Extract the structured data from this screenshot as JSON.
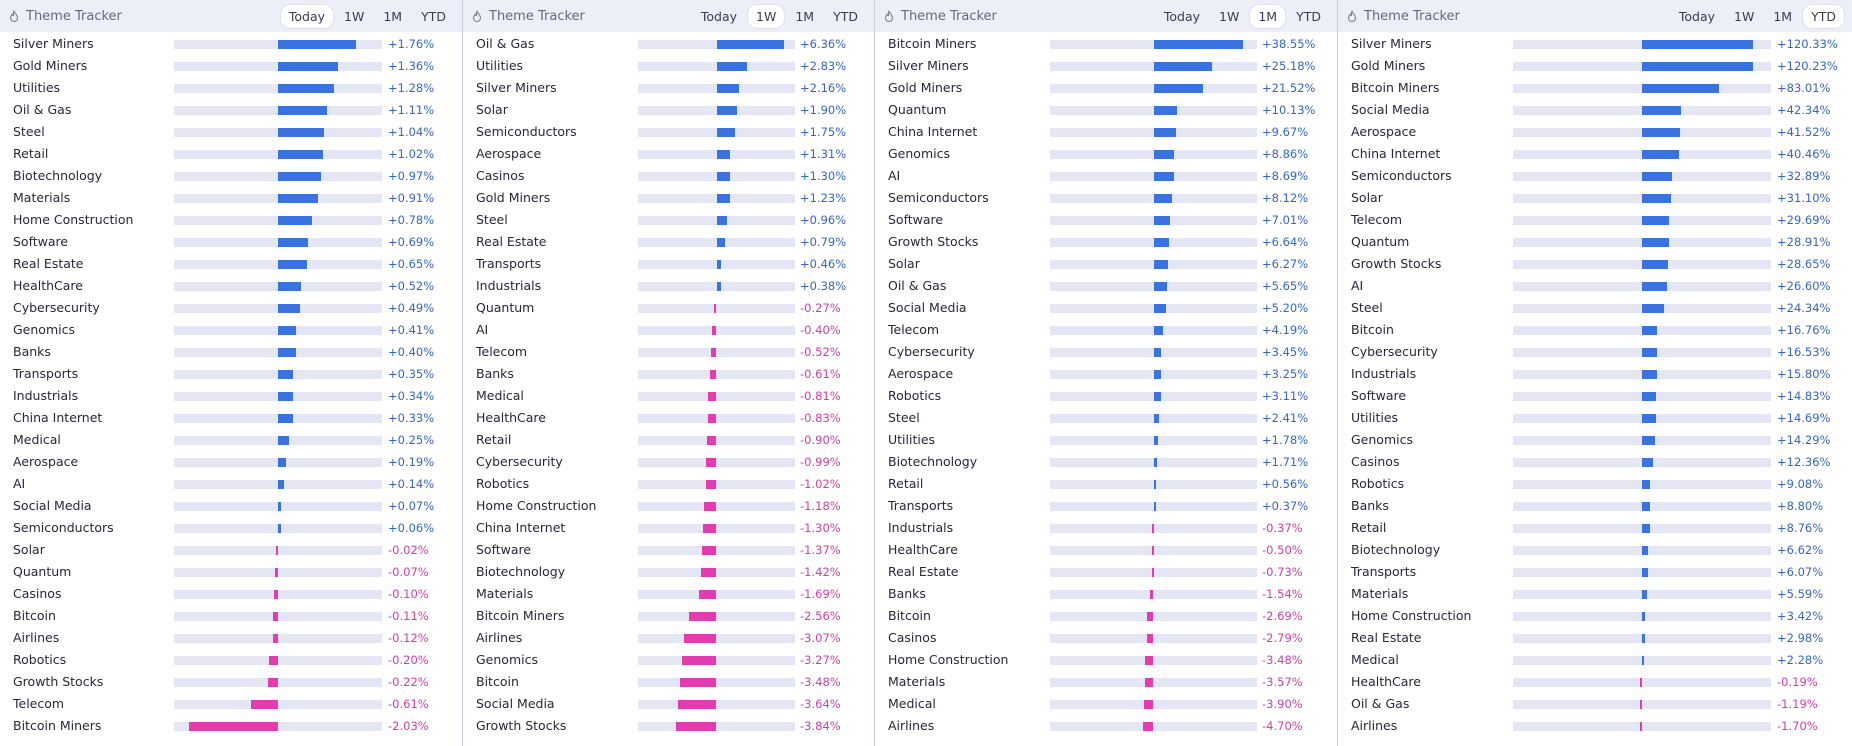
{
  "app": {
    "title": "Theme Tracker",
    "tabs": [
      "Today",
      "1W",
      "1M",
      "YTD"
    ],
    "colors": {
      "positive": "#3a72e0",
      "negative": "#e23caf",
      "track": "#e4e6f3",
      "header_bg": "#eceef8"
    }
  },
  "panels": [
    {
      "title": "Theme Tracker",
      "active_tab": "Today",
      "tabs": [
        "Today",
        "1W",
        "1M",
        "YTD"
      ],
      "rows": [
        {
          "name": "Silver Miners",
          "label": "+1.76%",
          "value": 1.76
        },
        {
          "name": "Gold Miners",
          "label": "+1.36%",
          "value": 1.36
        },
        {
          "name": "Utilities",
          "label": "+1.28%",
          "value": 1.28
        },
        {
          "name": "Oil & Gas",
          "label": "+1.11%",
          "value": 1.11
        },
        {
          "name": "Steel",
          "label": "+1.04%",
          "value": 1.04
        },
        {
          "name": "Retail",
          "label": "+1.02%",
          "value": 1.02
        },
        {
          "name": "Biotechnology",
          "label": "+0.97%",
          "value": 0.97
        },
        {
          "name": "Materials",
          "label": "+0.91%",
          "value": 0.91
        },
        {
          "name": "Home Construction",
          "label": "+0.78%",
          "value": 0.78
        },
        {
          "name": "Software",
          "label": "+0.69%",
          "value": 0.69
        },
        {
          "name": "Real Estate",
          "label": "+0.65%",
          "value": 0.65
        },
        {
          "name": "HealthCare",
          "label": "+0.52%",
          "value": 0.52
        },
        {
          "name": "Cybersecurity",
          "label": "+0.49%",
          "value": 0.49
        },
        {
          "name": "Genomics",
          "label": "+0.41%",
          "value": 0.41
        },
        {
          "name": "Banks",
          "label": "+0.40%",
          "value": 0.4
        },
        {
          "name": "Transports",
          "label": "+0.35%",
          "value": 0.35
        },
        {
          "name": "Industrials",
          "label": "+0.34%",
          "value": 0.34
        },
        {
          "name": "China Internet",
          "label": "+0.33%",
          "value": 0.33
        },
        {
          "name": "Medical",
          "label": "+0.25%",
          "value": 0.25
        },
        {
          "name": "Aerospace",
          "label": "+0.19%",
          "value": 0.19
        },
        {
          "name": "AI",
          "label": "+0.14%",
          "value": 0.14
        },
        {
          "name": "Social Media",
          "label": "+0.07%",
          "value": 0.07
        },
        {
          "name": "Semiconductors",
          "label": "+0.06%",
          "value": 0.06
        },
        {
          "name": "Solar",
          "label": "-0.02%",
          "value": -0.02
        },
        {
          "name": "Quantum",
          "label": "-0.07%",
          "value": -0.07
        },
        {
          "name": "Casinos",
          "label": "-0.10%",
          "value": -0.1
        },
        {
          "name": "Bitcoin",
          "label": "-0.11%",
          "value": -0.11
        },
        {
          "name": "Airlines",
          "label": "-0.12%",
          "value": -0.12
        },
        {
          "name": "Robotics",
          "label": "-0.20%",
          "value": -0.2
        },
        {
          "name": "Growth Stocks",
          "label": "-0.22%",
          "value": -0.22
        },
        {
          "name": "Telecom",
          "label": "-0.61%",
          "value": -0.61
        },
        {
          "name": "Bitcoin Miners",
          "label": "-2.03%",
          "value": -2.03
        }
      ]
    },
    {
      "title": "Theme Tracker",
      "active_tab": "1W",
      "tabs": [
        "Today",
        "1W",
        "1M",
        "YTD"
      ],
      "rows": [
        {
          "name": "Oil & Gas",
          "label": "+6.36%",
          "value": 6.36
        },
        {
          "name": "Utilities",
          "label": "+2.83%",
          "value": 2.83
        },
        {
          "name": "Silver Miners",
          "label": "+2.16%",
          "value": 2.16
        },
        {
          "name": "Solar",
          "label": "+1.90%",
          "value": 1.9
        },
        {
          "name": "Semiconductors",
          "label": "+1.75%",
          "value": 1.75
        },
        {
          "name": "Aerospace",
          "label": "+1.31%",
          "value": 1.31
        },
        {
          "name": "Casinos",
          "label": "+1.30%",
          "value": 1.3
        },
        {
          "name": "Gold Miners",
          "label": "+1.23%",
          "value": 1.23
        },
        {
          "name": "Steel",
          "label": "+0.96%",
          "value": 0.96
        },
        {
          "name": "Real Estate",
          "label": "+0.79%",
          "value": 0.79
        },
        {
          "name": "Transports",
          "label": "+0.46%",
          "value": 0.46
        },
        {
          "name": "Industrials",
          "label": "+0.38%",
          "value": 0.38
        },
        {
          "name": "Quantum",
          "label": "-0.27%",
          "value": -0.27
        },
        {
          "name": "AI",
          "label": "-0.40%",
          "value": -0.4
        },
        {
          "name": "Telecom",
          "label": "-0.52%",
          "value": -0.52
        },
        {
          "name": "Banks",
          "label": "-0.61%",
          "value": -0.61
        },
        {
          "name": "Medical",
          "label": "-0.81%",
          "value": -0.81
        },
        {
          "name": "HealthCare",
          "label": "-0.83%",
          "value": -0.83
        },
        {
          "name": "Retail",
          "label": "-0.90%",
          "value": -0.9
        },
        {
          "name": "Cybersecurity",
          "label": "-0.99%",
          "value": -0.99
        },
        {
          "name": "Robotics",
          "label": "-1.02%",
          "value": -1.02
        },
        {
          "name": "Home Construction",
          "label": "-1.18%",
          "value": -1.18
        },
        {
          "name": "China Internet",
          "label": "-1.30%",
          "value": -1.3
        },
        {
          "name": "Software",
          "label": "-1.37%",
          "value": -1.37
        },
        {
          "name": "Biotechnology",
          "label": "-1.42%",
          "value": -1.42
        },
        {
          "name": "Materials",
          "label": "-1.69%",
          "value": -1.69
        },
        {
          "name": "Bitcoin Miners",
          "label": "-2.56%",
          "value": -2.56
        },
        {
          "name": "Airlines",
          "label": "-3.07%",
          "value": -3.07
        },
        {
          "name": "Genomics",
          "label": "-3.27%",
          "value": -3.27
        },
        {
          "name": "Bitcoin",
          "label": "-3.48%",
          "value": -3.48
        },
        {
          "name": "Social Media",
          "label": "-3.64%",
          "value": -3.64
        },
        {
          "name": "Growth Stocks",
          "label": "-3.84%",
          "value": -3.84
        }
      ]
    },
    {
      "title": "Theme Tracker",
      "active_tab": "1M",
      "tabs": [
        "Today",
        "1W",
        "1M",
        "YTD"
      ],
      "rows": [
        {
          "name": "Bitcoin Miners",
          "label": "+38.55%",
          "value": 38.55
        },
        {
          "name": "Silver Miners",
          "label": "+25.18%",
          "value": 25.18
        },
        {
          "name": "Gold Miners",
          "label": "+21.52%",
          "value": 21.52
        },
        {
          "name": "Quantum",
          "label": "+10.13%",
          "value": 10.13
        },
        {
          "name": "China Internet",
          "label": "+9.67%",
          "value": 9.67
        },
        {
          "name": "Genomics",
          "label": "+8.86%",
          "value": 8.86
        },
        {
          "name": "AI",
          "label": "+8.69%",
          "value": 8.69
        },
        {
          "name": "Semiconductors",
          "label": "+8.12%",
          "value": 8.12
        },
        {
          "name": "Software",
          "label": "+7.01%",
          "value": 7.01
        },
        {
          "name": "Growth Stocks",
          "label": "+6.64%",
          "value": 6.64
        },
        {
          "name": "Solar",
          "label": "+6.27%",
          "value": 6.27
        },
        {
          "name": "Oil & Gas",
          "label": "+5.65%",
          "value": 5.65
        },
        {
          "name": "Social Media",
          "label": "+5.20%",
          "value": 5.2
        },
        {
          "name": "Telecom",
          "label": "+4.19%",
          "value": 4.19
        },
        {
          "name": "Cybersecurity",
          "label": "+3.45%",
          "value": 3.45
        },
        {
          "name": "Aerospace",
          "label": "+3.25%",
          "value": 3.25
        },
        {
          "name": "Robotics",
          "label": "+3.11%",
          "value": 3.11
        },
        {
          "name": "Steel",
          "label": "+2.41%",
          "value": 2.41
        },
        {
          "name": "Utilities",
          "label": "+1.78%",
          "value": 1.78
        },
        {
          "name": "Biotechnology",
          "label": "+1.71%",
          "value": 1.71
        },
        {
          "name": "Retail",
          "label": "+0.56%",
          "value": 0.56
        },
        {
          "name": "Transports",
          "label": "+0.37%",
          "value": 0.37
        },
        {
          "name": "Industrials",
          "label": "-0.37%",
          "value": -0.37
        },
        {
          "name": "HealthCare",
          "label": "-0.50%",
          "value": -0.5
        },
        {
          "name": "Real Estate",
          "label": "-0.73%",
          "value": -0.73
        },
        {
          "name": "Banks",
          "label": "-1.54%",
          "value": -1.54
        },
        {
          "name": "Bitcoin",
          "label": "-2.69%",
          "value": -2.69
        },
        {
          "name": "Casinos",
          "label": "-2.79%",
          "value": -2.79
        },
        {
          "name": "Home Construction",
          "label": "-3.48%",
          "value": -3.48
        },
        {
          "name": "Materials",
          "label": "-3.57%",
          "value": -3.57
        },
        {
          "name": "Medical",
          "label": "-3.90%",
          "value": -3.9
        },
        {
          "name": "Airlines",
          "label": "-4.70%",
          "value": -4.7
        }
      ]
    },
    {
      "title": "Theme Tracker",
      "active_tab": "YTD",
      "tabs": [
        "Today",
        "1W",
        "1M",
        "YTD"
      ],
      "rows": [
        {
          "name": "Silver Miners",
          "label": "+120.33%",
          "value": 120.33
        },
        {
          "name": "Gold Miners",
          "label": "+120.23%",
          "value": 120.23
        },
        {
          "name": "Bitcoin Miners",
          "label": "+83.01%",
          "value": 83.01
        },
        {
          "name": "Social Media",
          "label": "+42.34%",
          "value": 42.34
        },
        {
          "name": "Aerospace",
          "label": "+41.52%",
          "value": 41.52
        },
        {
          "name": "China Internet",
          "label": "+40.46%",
          "value": 40.46
        },
        {
          "name": "Semiconductors",
          "label": "+32.89%",
          "value": 32.89
        },
        {
          "name": "Solar",
          "label": "+31.10%",
          "value": 31.1
        },
        {
          "name": "Telecom",
          "label": "+29.69%",
          "value": 29.69
        },
        {
          "name": "Quantum",
          "label": "+28.91%",
          "value": 28.91
        },
        {
          "name": "Growth Stocks",
          "label": "+28.65%",
          "value": 28.65
        },
        {
          "name": "AI",
          "label": "+26.60%",
          "value": 26.6
        },
        {
          "name": "Steel",
          "label": "+24.34%",
          "value": 24.34
        },
        {
          "name": "Bitcoin",
          "label": "+16.76%",
          "value": 16.76
        },
        {
          "name": "Cybersecurity",
          "label": "+16.53%",
          "value": 16.53
        },
        {
          "name": "Industrials",
          "label": "+15.80%",
          "value": 15.8
        },
        {
          "name": "Software",
          "label": "+14.83%",
          "value": 14.83
        },
        {
          "name": "Utilities",
          "label": "+14.69%",
          "value": 14.69
        },
        {
          "name": "Genomics",
          "label": "+14.29%",
          "value": 14.29
        },
        {
          "name": "Casinos",
          "label": "+12.36%",
          "value": 12.36
        },
        {
          "name": "Robotics",
          "label": "+9.08%",
          "value": 9.08
        },
        {
          "name": "Banks",
          "label": "+8.80%",
          "value": 8.8
        },
        {
          "name": "Retail",
          "label": "+8.76%",
          "value": 8.76
        },
        {
          "name": "Biotechnology",
          "label": "+6.62%",
          "value": 6.62
        },
        {
          "name": "Transports",
          "label": "+6.07%",
          "value": 6.07
        },
        {
          "name": "Materials",
          "label": "+5.59%",
          "value": 5.59
        },
        {
          "name": "Home Construction",
          "label": "+3.42%",
          "value": 3.42
        },
        {
          "name": "Real Estate",
          "label": "+2.98%",
          "value": 2.98
        },
        {
          "name": "Medical",
          "label": "+2.28%",
          "value": 2.28
        },
        {
          "name": "HealthCare",
          "label": "-0.19%",
          "value": -0.19
        },
        {
          "name": "Oil & Gas",
          "label": "-1.19%",
          "value": -1.19
        },
        {
          "name": "Airlines",
          "label": "-1.70%",
          "value": -1.7
        }
      ]
    }
  ]
}
